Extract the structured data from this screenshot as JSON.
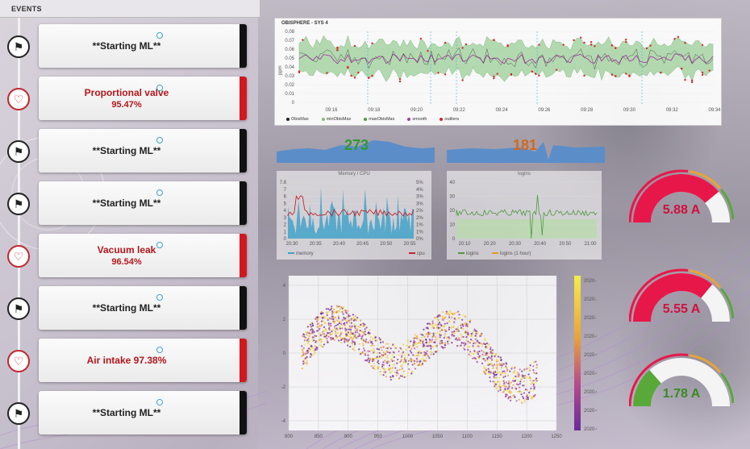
{
  "events_panel": {
    "header": "EVENTS",
    "items": [
      {
        "kind": "info",
        "icon": "flag-icon",
        "title": "**Starting ML**",
        "value": ""
      },
      {
        "kind": "alert",
        "icon": "heart-alert-icon",
        "title": "Proportional valve",
        "value": "95.47%"
      },
      {
        "kind": "info",
        "icon": "flag-icon",
        "title": "**Starting ML**",
        "value": ""
      },
      {
        "kind": "info",
        "icon": "flag-icon",
        "title": "**Starting ML**",
        "value": ""
      },
      {
        "kind": "alert",
        "icon": "heart-alert-icon",
        "title": "Vacuum leak",
        "value": "96.54%"
      },
      {
        "kind": "info",
        "icon": "flag-icon",
        "title": "**Starting ML**",
        "value": ""
      },
      {
        "kind": "alert",
        "icon": "heart-alert-icon",
        "title": "Air intake 97.38%",
        "value": ""
      },
      {
        "kind": "info",
        "icon": "flag-icon",
        "title": "**Starting ML**",
        "value": ""
      }
    ]
  },
  "top_chart": {
    "title": "OBISPHERE - SYS 4",
    "ylabel": "ppm",
    "yticks": [
      "0.08",
      "0.07",
      "0.06",
      "0.05",
      "0.04",
      "0.03",
      "0.02",
      "0.01",
      "0"
    ],
    "xticks": [
      "09:16",
      "09:18",
      "09:20",
      "09:22",
      "09:24",
      "09:26",
      "09:28",
      "09:30",
      "09:32",
      "09:34"
    ],
    "legend": [
      {
        "label": "ObisMax",
        "color": "#222222"
      },
      {
        "label": "minObisMax",
        "color": "#7cc36b"
      },
      {
        "label": "maxObisMax",
        "color": "#4e9a3a"
      },
      {
        "label": "smooth",
        "color": "#a040a0"
      },
      {
        "label": "outliers",
        "color": "#d62728"
      }
    ]
  },
  "sparklines": [
    {
      "value": "273",
      "color": "#2e9b2e"
    },
    {
      "value": "181",
      "color": "#d2691e"
    }
  ],
  "mid_left": {
    "title": "Memory / CPU",
    "yleft": [
      "7.8",
      "7",
      "6",
      "5",
      "4",
      "3",
      "2",
      "1",
      "0"
    ],
    "yright": [
      "5%",
      "4%",
      "3%",
      "3%",
      "2%",
      "2%",
      "1%",
      "1%",
      "0%"
    ],
    "xticks": [
      "20:30",
      "20:35",
      "20:40",
      "20:45",
      "20:50",
      "20:55"
    ],
    "legend": [
      {
        "label": "memory",
        "color": "#3aa0c8"
      },
      {
        "label": "cpu",
        "color": "#c0272d"
      }
    ]
  },
  "mid_right": {
    "title": "logins",
    "yticks": [
      "40",
      "30",
      "20",
      "10",
      "0"
    ],
    "xticks": [
      "20:10",
      "20:20",
      "20:30",
      "20:40",
      "20:50",
      "21:00"
    ],
    "legend": [
      {
        "label": "logins",
        "color": "#4e9a3a"
      },
      {
        "label": "logins (1 hour)",
        "color": "#e0a020"
      }
    ]
  },
  "scatter": {
    "yticks": [
      "4",
      "2",
      "0",
      "-2",
      "-4"
    ],
    "xticks": [
      "800",
      "850",
      "900",
      "950",
      "1000",
      "1050",
      "1100",
      "1150",
      "1200",
      "1250"
    ],
    "colorbar": [
      "2020-12",
      "2020-11",
      "2020-10",
      "2020-09",
      "2020-08",
      "2020-07",
      "2020-06",
      "2020-05",
      "2020-04"
    ]
  },
  "gauges": [
    {
      "value": "5.88 A",
      "fraction": 0.78,
      "color": "#e8174a",
      "text_color": "#d0103e"
    },
    {
      "value": "5.55 A",
      "fraction": 0.72,
      "color": "#e8174a",
      "text_color": "#d0103e"
    },
    {
      "value": "1.78 A",
      "fraction": 0.27,
      "color": "#58a83a",
      "text_color": "#3a8a22"
    }
  ]
}
